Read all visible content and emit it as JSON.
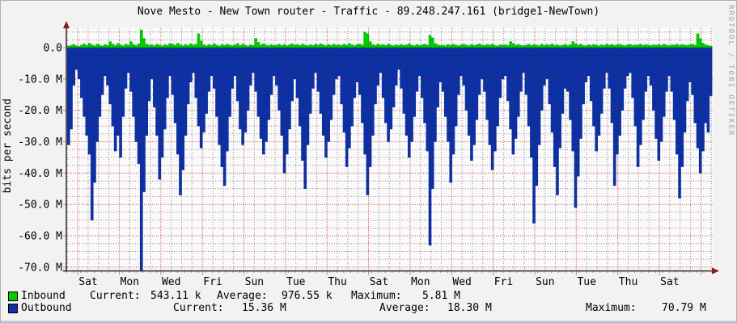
{
  "title": "Nove Mesto - New Town router - Traffic - 89.248.247.161 (bridge1-NewTown)",
  "watermark": "RRDTOOL / TOBI OETIKER",
  "y_axis": {
    "label": "bits per second",
    "ticks": [
      "0.0",
      "-10.0 M",
      "-20.0 M",
      "-30.0 M",
      "-40.0 M",
      "-50.0 M",
      "-60.0 M",
      "-70.0 M"
    ]
  },
  "x_axis": {
    "ticks": [
      "Sat",
      "Mon",
      "Wed",
      "Fri",
      "Sun",
      "Tue",
      "Thu",
      "Sat",
      "Mon",
      "Wed",
      "Fri",
      "Sun",
      "Tue",
      "Thu",
      "Sat"
    ]
  },
  "legend": {
    "rows": [
      {
        "label": "Inbound",
        "current_label": "Current:",
        "current": "543.11 k",
        "average_label": "Average:",
        "average": "976.55 k",
        "maximum_label": "Maximum:",
        "maximum": "5.81 M"
      },
      {
        "label": "Outbound",
        "current_label": "Current:",
        "current": "15.36 M",
        "average_label": "Average:",
        "average": "18.30 M",
        "maximum_label": "Maximum:",
        "maximum": "70.79 M"
      }
    ]
  },
  "colors": {
    "inbound": "#00cc00",
    "outbound": "#0d31a3",
    "grid_minor": "#d8b6b6",
    "grid_major": "#f07868",
    "axis": "#222222",
    "arrow": "#8b1a1a",
    "canvas": "#fafafa"
  },
  "chart_data": {
    "type": "area",
    "title": "Nove Mesto - New Town router - Traffic - 89.248.247.161 (bridge1-NewTown)",
    "xlabel": "",
    "ylabel": "bits per second",
    "ylim": [
      -71.2,
      6.4
    ],
    "grid": true,
    "legend_position": "bottom",
    "x_tick_labels": [
      "Sat",
      "Mon",
      "Wed",
      "Fri",
      "Sun",
      "Tue",
      "Thu",
      "Sat",
      "Mon",
      "Wed",
      "Fri",
      "Sun",
      "Tue",
      "Thu",
      "Sat"
    ],
    "units": "Mbit/s",
    "series": [
      {
        "name": "Inbound",
        "stats": {
          "current": "543.11 k",
          "average": "976.55 k",
          "maximum": "5.81 M"
        },
        "values": [
          0.6,
          0.8,
          1.1,
          0.7,
          0.5,
          0.9,
          1.3,
          0.8,
          1.5,
          1.0,
          0.7,
          1.2,
          0.9,
          0.6,
          1.1,
          0.8,
          2.0,
          1.2,
          0.8,
          1.4,
          1.0,
          0.7,
          1.2,
          0.9,
          2.0,
          1.1,
          0.8,
          1.3,
          5.7,
          3.0,
          1.2,
          0.9,
          1.0,
          0.7,
          1.2,
          0.9,
          0.6,
          1.1,
          0.8,
          1.4,
          1.2,
          0.9,
          1.5,
          1.0,
          0.7,
          1.1,
          0.8,
          1.3,
          0.9,
          1.2,
          4.5,
          2.2,
          1.0,
          0.7,
          1.1,
          0.8,
          1.3,
          0.9,
          0.6,
          1.1,
          0.8,
          1.2,
          0.9,
          0.7,
          1.0,
          1.4,
          0.8,
          1.2,
          0.9,
          0.6,
          1.0,
          0.8,
          3.0,
          1.8,
          1.0,
          1.3,
          0.9,
          0.7,
          1.1,
          0.8,
          0.9,
          1.2,
          0.8,
          1.1,
          0.7,
          1.0,
          1.3,
          0.9,
          1.1,
          0.8,
          1.2,
          0.9,
          0.7,
          1.0,
          0.8,
          1.2,
          0.9,
          1.3,
          1.0,
          0.7,
          1.1,
          0.8,
          1.2,
          0.9,
          1.0,
          0.8,
          1.2,
          0.9,
          1.4,
          1.0,
          0.7,
          1.1,
          1.2,
          0.9,
          5.0,
          4.5,
          2.0,
          1.1,
          0.8,
          1.2,
          0.9,
          1.1,
          0.8,
          1.2,
          0.9,
          0.7,
          1.0,
          0.8,
          1.1,
          0.8,
          1.0,
          1.3,
          0.9,
          0.7,
          1.1,
          0.8,
          1.0,
          1.2,
          0.9,
          4.0,
          3.2,
          1.4,
          1.0,
          0.8,
          0.9,
          0.7,
          1.1,
          0.8,
          1.2,
          0.9,
          0.7,
          1.0,
          1.2,
          0.9,
          0.7,
          1.1,
          0.8,
          1.0,
          1.3,
          0.9,
          0.8,
          1.1,
          0.9,
          1.2,
          0.8,
          0.6,
          1.0,
          0.9,
          1.0,
          0.8,
          2.0,
          1.4,
          0.9,
          1.1,
          0.8,
          0.7,
          0.9,
          1.2,
          0.8,
          1.1,
          0.9,
          0.7,
          1.2,
          0.8,
          1.1,
          0.9,
          1.3,
          0.8,
          1.0,
          0.7,
          0.9,
          1.1,
          0.8,
          1.0,
          2.0,
          1.3,
          0.9,
          1.2,
          0.8,
          0.7,
          1.0,
          0.8,
          1.1,
          0.9,
          0.7,
          1.0,
          0.8,
          1.2,
          0.9,
          1.1,
          0.8,
          1.0,
          1.2,
          0.9,
          0.7,
          1.0,
          1.1,
          0.8,
          1.0,
          0.9,
          1.2,
          0.8,
          1.1,
          0.9,
          0.8,
          1.0,
          0.9,
          1.1,
          0.8,
          1.2,
          0.9,
          0.7,
          1.0,
          0.9,
          1.2,
          0.8,
          1.1,
          0.9,
          0.8,
          1.0,
          1.2,
          0.9,
          4.5,
          3.0,
          1.5,
          1.0,
          0.8,
          0.54
        ]
      },
      {
        "name": "Outbound",
        "stats": {
          "current": "15.36 M",
          "average": "18.30 M",
          "maximum": "70.79 M"
        },
        "values": [
          -31,
          -26,
          -12,
          -7,
          -10,
          -16,
          -22,
          -28,
          -34,
          -55,
          -43,
          -30,
          -22,
          -15,
          -9,
          -12,
          -18,
          -25,
          -33,
          -28,
          -35,
          -22,
          -13,
          -8,
          -14,
          -22,
          -30,
          -37,
          -71,
          -46,
          -28,
          -17,
          -10,
          -19,
          -28,
          -42,
          -35,
          -26,
          -16,
          -9,
          -15,
          -24,
          -34,
          -47,
          -39,
          -28,
          -18,
          -11,
          -8,
          -16,
          -25,
          -32,
          -27,
          -21,
          -14,
          -9,
          -13,
          -22,
          -31,
          -38,
          -44,
          -33,
          -22,
          -13,
          -9,
          -17,
          -26,
          -31,
          -27,
          -20,
          -12,
          -8,
          -14,
          -22,
          -29,
          -34,
          -30,
          -23,
          -15,
          -9,
          -12,
          -20,
          -28,
          -40,
          -34,
          -26,
          -17,
          -10,
          -16,
          -25,
          -36,
          -45,
          -31,
          -21,
          -13,
          -8,
          -14,
          -21,
          -28,
          -35,
          -30,
          -23,
          -15,
          -10,
          -9,
          -18,
          -27,
          -38,
          -32,
          -25,
          -16,
          -11,
          -15,
          -24,
          -34,
          -47,
          -38,
          -28,
          -18,
          -12,
          -8,
          -16,
          -24,
          -30,
          -26,
          -19,
          -12,
          -7,
          -13,
          -21,
          -28,
          -35,
          -30,
          -22,
          -14,
          -9,
          -16,
          -24,
          -33,
          -63,
          -45,
          -30,
          -19,
          -11,
          -14,
          -22,
          -30,
          -43,
          -34,
          -25,
          -15,
          -9,
          -12,
          -20,
          -28,
          -36,
          -31,
          -23,
          -15,
          -10,
          -14,
          -23,
          -31,
          -39,
          -33,
          -25,
          -16,
          -10,
          -9,
          -17,
          -26,
          -34,
          -29,
          -22,
          -14,
          -8,
          -15,
          -25,
          -35,
          -56,
          -44,
          -31,
          -20,
          -12,
          -10,
          -18,
          -27,
          -38,
          -47,
          -32,
          -21,
          -13,
          -14,
          -23,
          -33,
          -51,
          -41,
          -29,
          -18,
          -11,
          -9,
          -17,
          -25,
          -33,
          -28,
          -21,
          -13,
          -8,
          -13,
          -24,
          -44,
          -34,
          -28,
          -20,
          -13,
          -9,
          -8,
          -16,
          -25,
          -38,
          -31,
          -23,
          -14,
          -9,
          -12,
          -20,
          -29,
          -36,
          -30,
          -22,
          -14,
          -9,
          -14,
          -23,
          -34,
          -48,
          -38,
          -27,
          -17,
          -11,
          -15,
          -24,
          -32,
          -40,
          -33,
          -24,
          -27,
          -15.36
        ]
      }
    ]
  }
}
